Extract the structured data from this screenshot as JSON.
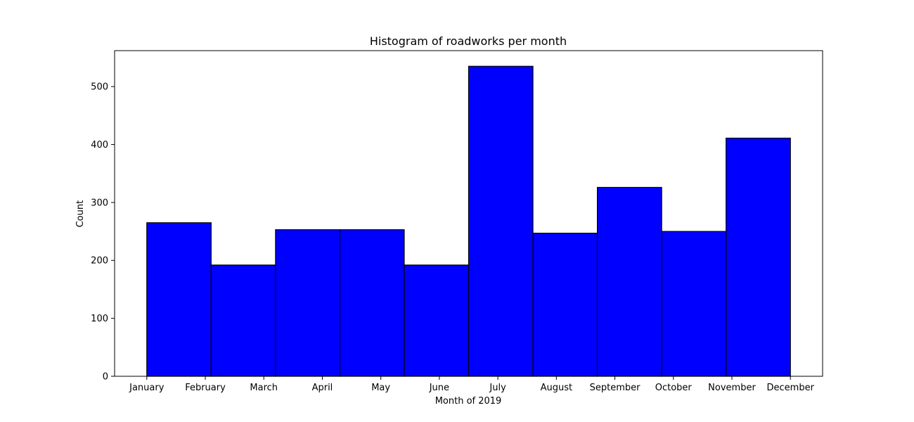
{
  "chart_data": {
    "type": "bar",
    "title": "Histogram of roadworks per month",
    "xlabel": "Month of 2019",
    "ylabel": "Count",
    "x_tick_labels": [
      "January",
      "February",
      "March",
      "April",
      "May",
      "June",
      "July",
      "August",
      "September",
      "October",
      "November",
      "December"
    ],
    "bins": [
      {
        "start": 1.0,
        "end": 2.1,
        "value": 265
      },
      {
        "start": 2.1,
        "end": 3.2,
        "value": 192
      },
      {
        "start": 3.2,
        "end": 4.3,
        "value": 253
      },
      {
        "start": 4.3,
        "end": 5.4,
        "value": 253
      },
      {
        "start": 5.4,
        "end": 6.5,
        "value": 192
      },
      {
        "start": 6.5,
        "end": 7.6,
        "value": 535
      },
      {
        "start": 7.6,
        "end": 8.7,
        "value": 247
      },
      {
        "start": 8.7,
        "end": 9.8,
        "value": 326
      },
      {
        "start": 9.8,
        "end": 10.9,
        "value": 250
      },
      {
        "start": 10.9,
        "end": 12.0,
        "value": 411
      }
    ],
    "xlim": [
      0.45,
      12.55
    ],
    "ylim": [
      0,
      562
    ],
    "y_ticks": [
      0,
      100,
      200,
      300,
      400,
      500
    ],
    "grid": false,
    "bar_color": "#0000ff",
    "edge_color": "#000000"
  }
}
